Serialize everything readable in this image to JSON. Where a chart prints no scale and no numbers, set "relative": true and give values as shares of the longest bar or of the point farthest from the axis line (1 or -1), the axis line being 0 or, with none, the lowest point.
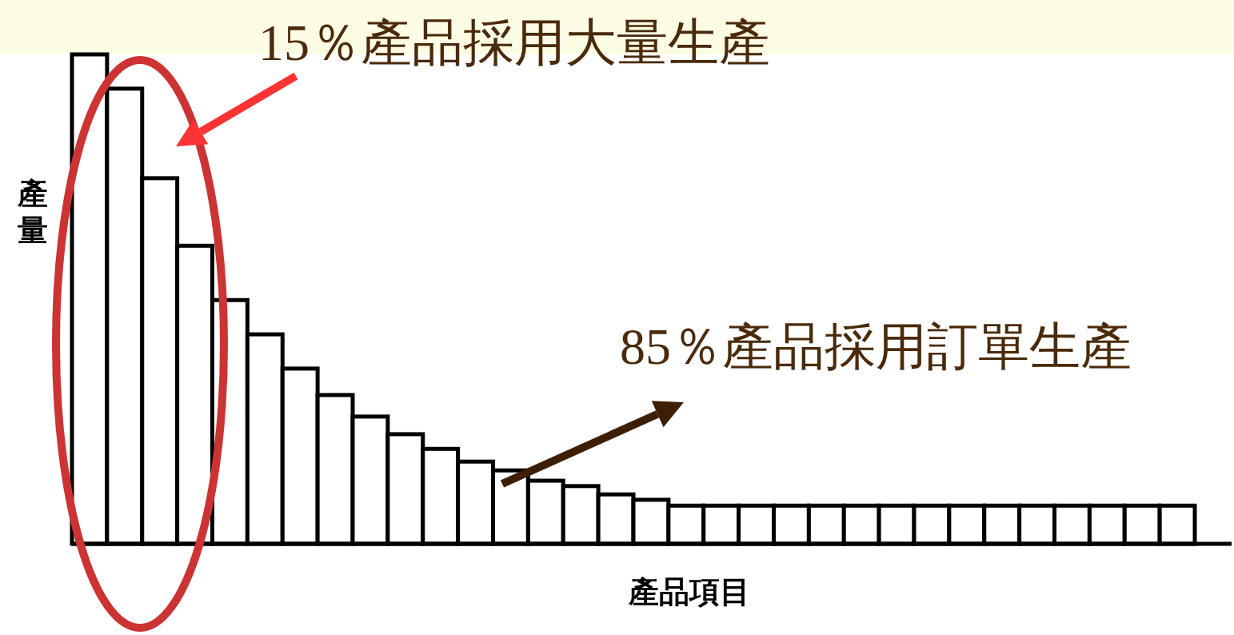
{
  "chart_data": {
    "type": "bar",
    "relative": true,
    "categories": [
      null,
      null,
      null,
      null,
      null,
      null,
      null,
      null,
      null,
      null,
      null,
      null,
      null,
      null,
      null,
      null,
      null,
      null,
      null,
      null,
      null,
      null,
      null,
      null,
      null,
      null,
      null,
      null,
      null,
      null,
      null,
      null
    ],
    "values": [
      1,
      0.93,
      0.747,
      0.609,
      0.498,
      0.428,
      0.358,
      0.304,
      0.26,
      0.224,
      0.194,
      0.168,
      0.15,
      0.129,
      0.118,
      0.101,
      0.09,
      0.078,
      0.078,
      0.078,
      0.078,
      0.078,
      0.078,
      0.078,
      0.078,
      0.078,
      0.078,
      0.078,
      0.078,
      0.078,
      0.078,
      0.078
    ],
    "color": "#ffffff",
    "xlabel": "產品項目",
    "ylabel": "產量",
    "annotations": [
      "15％產品採用大量生產",
      "85％產品採用訂單生產"
    ]
  }
}
